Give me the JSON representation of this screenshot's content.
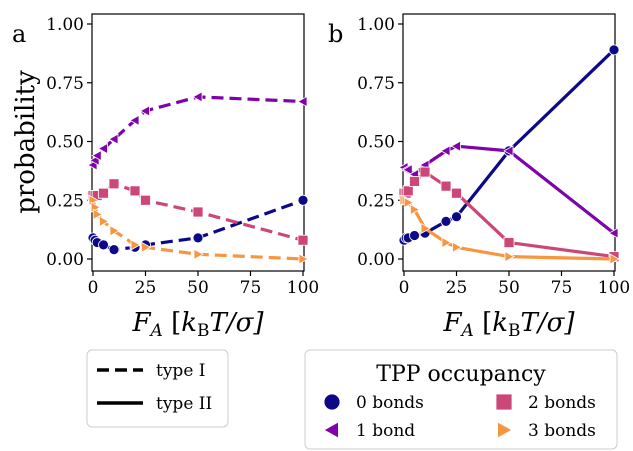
{
  "figure": {
    "ylabel": "probability",
    "xlabel": "F_A [k_BT/σ]",
    "xlabel_parts": {
      "main": "F",
      "sub": "A",
      "bracket_open": " [",
      "k": "k",
      "ksub": "B",
      "rest": "T/σ]"
    }
  },
  "chart_data": [
    {
      "panel": "a",
      "type": "line",
      "linestyle": "dashed",
      "x": [
        0,
        1,
        2,
        5,
        10,
        20,
        25,
        50,
        100
      ],
      "xlim": [
        0,
        100
      ],
      "ylim": [
        0,
        1.05
      ],
      "xticks": [
        "0",
        "25",
        "50",
        "75",
        "100"
      ],
      "yticks": [
        "0.00",
        "0.25",
        "0.50",
        "0.75",
        "1.00"
      ],
      "series": [
        {
          "name": "0 bonds",
          "marker": "circle",
          "color": "#0d0887",
          "values": [
            0.09,
            0.08,
            0.07,
            0.06,
            0.04,
            0.05,
            0.06,
            0.09,
            0.25
          ]
        },
        {
          "name": "1 bond",
          "marker": "triangle-left",
          "color": "#7e03a8",
          "values": [
            0.4,
            0.42,
            0.44,
            0.47,
            0.51,
            0.59,
            0.63,
            0.69,
            0.67
          ]
        },
        {
          "name": "2 bonds",
          "marker": "square",
          "color": "#cc4778",
          "values": [
            0.27,
            0.27,
            0.27,
            0.28,
            0.32,
            0.29,
            0.25,
            0.2,
            0.08
          ]
        },
        {
          "name": "3 bonds",
          "marker": "triangle-right",
          "color": "#f89540",
          "values": [
            0.25,
            0.22,
            0.19,
            0.16,
            0.12,
            0.06,
            0.05,
            0.02,
            0.0
          ]
        }
      ]
    },
    {
      "panel": "b",
      "type": "line",
      "linestyle": "solid",
      "x": [
        0,
        1,
        2,
        5,
        10,
        20,
        25,
        50,
        100
      ],
      "xlim": [
        0,
        100
      ],
      "ylim": [
        0,
        1.05
      ],
      "xticks": [
        "0",
        "25",
        "50",
        "75",
        "100"
      ],
      "yticks": [
        "0.00",
        "0.25",
        "0.50",
        "0.75",
        "1.00"
      ],
      "series": [
        {
          "name": "0 bonds",
          "marker": "circle",
          "color": "#0d0887",
          "values": [
            0.08,
            0.09,
            0.09,
            0.1,
            0.11,
            0.16,
            0.18,
            0.46,
            0.89
          ]
        },
        {
          "name": "1 bond",
          "marker": "triangle-left",
          "color": "#7e03a8",
          "values": [
            0.39,
            0.38,
            0.38,
            0.36,
            0.4,
            0.46,
            0.48,
            0.46,
            0.11
          ]
        },
        {
          "name": "2 bonds",
          "marker": "square",
          "color": "#cc4778",
          "values": [
            0.28,
            0.28,
            0.29,
            0.33,
            0.37,
            0.31,
            0.28,
            0.07,
            0.01
          ]
        },
        {
          "name": "3 bonds",
          "marker": "triangle-right",
          "color": "#f89540",
          "values": [
            0.25,
            0.25,
            0.24,
            0.21,
            0.13,
            0.07,
            0.05,
            0.01,
            0.0
          ]
        }
      ]
    }
  ],
  "legend_linestyle": {
    "items": [
      {
        "label": "type I",
        "style": "dashed"
      },
      {
        "label": "type II",
        "style": "solid"
      }
    ]
  },
  "legend_occupancy": {
    "title": "TPP occupancy",
    "items": [
      {
        "label": "0 bonds",
        "marker": "circle",
        "color": "#0d0887"
      },
      {
        "label": "2 bonds",
        "marker": "square",
        "color": "#cc4778"
      },
      {
        "label": "1 bond",
        "marker": "triangle-left",
        "color": "#7e03a8"
      },
      {
        "label": "3 bonds",
        "marker": "triangle-right",
        "color": "#f89540"
      }
    ]
  }
}
